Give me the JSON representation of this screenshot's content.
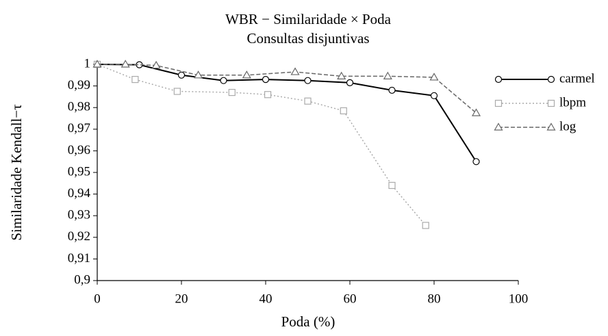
{
  "chart_data": {
    "type": "line",
    "title": "WBR − Similaridade × Poda",
    "subtitle": "Consultas disjuntivas",
    "xlabel": "Poda (%)",
    "ylabel": "Similaridade Kendall−τ",
    "xlim": [
      0,
      100
    ],
    "xticks": [
      0,
      20,
      40,
      60,
      80,
      100
    ],
    "ylim": [
      0.9,
      1
    ],
    "yticks": [
      {
        "value": 0.9,
        "label": "0,9"
      },
      {
        "value": 0.91,
        "label": "0,91"
      },
      {
        "value": 0.92,
        "label": "0,92"
      },
      {
        "value": 0.93,
        "label": "0,93"
      },
      {
        "value": 0.94,
        "label": "0,94"
      },
      {
        "value": 0.95,
        "label": "0,95"
      },
      {
        "value": 0.96,
        "label": "0,96"
      },
      {
        "value": 0.97,
        "label": "0,97"
      },
      {
        "value": 0.98,
        "label": "0,98"
      },
      {
        "value": 0.99,
        "label": "0,99"
      },
      1
    ],
    "legend": "right",
    "series": [
      {
        "name": "carmel",
        "color": "#000000",
        "marker": "circle",
        "dash": "solid",
        "x": [
          0,
          10,
          20,
          30,
          40,
          50,
          60,
          70,
          80,
          90
        ],
        "values": [
          1,
          0.9998,
          0.995,
          0.9925,
          0.993,
          0.9925,
          0.9915,
          0.988,
          0.9855,
          0.955
        ]
      },
      {
        "name": "lbpm",
        "color": "#aaaaaa",
        "marker": "square",
        "dash": "dotted",
        "x": [
          0,
          9,
          19,
          32,
          40.5,
          50,
          58.5,
          70,
          78
        ],
        "values": [
          1,
          0.993,
          0.9875,
          0.987,
          0.986,
          0.983,
          0.9785,
          0.944,
          0.9255
        ]
      },
      {
        "name": "log",
        "color": "#666666",
        "marker": "triangle",
        "dash": "dashed",
        "x": [
          0,
          6.7,
          14,
          24,
          35.5,
          47,
          58,
          69,
          80,
          90
        ],
        "values": [
          1,
          1,
          0.9995,
          0.995,
          0.995,
          0.9965,
          0.9945,
          0.9945,
          0.994,
          0.9775
        ]
      }
    ]
  }
}
